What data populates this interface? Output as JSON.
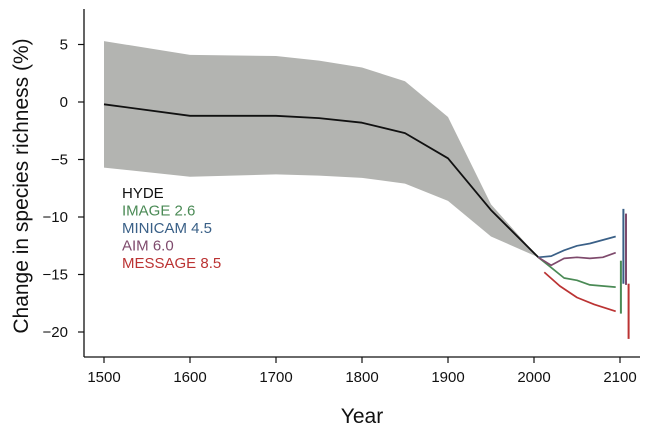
{
  "chart_data": {
    "type": "line",
    "xlabel": "Year",
    "ylabel": "Change in species richness (%)",
    "xlim": [
      1480,
      2125
    ],
    "ylim": [
      -22,
      8.5
    ],
    "x_ticks": [
      1500,
      1600,
      1700,
      1800,
      1900,
      2000,
      2100
    ],
    "y_ticks": [
      5,
      0,
      -5,
      -10,
      -15,
      -20
    ],
    "y_tick_labels": [
      "5",
      "0",
      "−5",
      "−10",
      "−15",
      "−20"
    ],
    "band": {
      "color": "#b3b4b1",
      "points": [
        {
          "x": 1500,
          "lower": -5.7,
          "upper": 5.3
        },
        {
          "x": 1600,
          "lower": -6.5,
          "upper": 4.1
        },
        {
          "x": 1700,
          "lower": -6.3,
          "upper": 4.0
        },
        {
          "x": 1750,
          "lower": -6.4,
          "upper": 3.6
        },
        {
          "x": 1800,
          "lower": -6.6,
          "upper": 3.0
        },
        {
          "x": 1850,
          "lower": -7.1,
          "upper": 1.8
        },
        {
          "x": 1900,
          "lower": -8.6,
          "upper": -1.3
        },
        {
          "x": 1950,
          "lower": -11.7,
          "upper": -8.9
        },
        {
          "x": 2005,
          "lower": -13.5,
          "upper": -13.5
        }
      ]
    },
    "series": [
      {
        "name": "HYDE",
        "color": "#111111",
        "x": [
          1500,
          1600,
          1700,
          1750,
          1800,
          1850,
          1900,
          1950,
          2005
        ],
        "y": [
          -0.2,
          -1.2,
          -1.2,
          -1.4,
          -1.8,
          -2.7,
          -4.9,
          -9.4,
          -13.5
        ]
      },
      {
        "name": "IMAGE 2.6",
        "color": "#4a8a55",
        "x": [
          2005,
          2020,
          2035,
          2050,
          2065,
          2080,
          2095
        ],
        "y": [
          -13.5,
          -14.4,
          -15.3,
          -15.5,
          -15.9,
          -16.0,
          -16.1
        ]
      },
      {
        "name": "MINICAM 4.5",
        "color": "#3a6087",
        "x": [
          2005,
          2020,
          2035,
          2050,
          2065,
          2080,
          2095
        ],
        "y": [
          -13.5,
          -13.4,
          -12.9,
          -12.5,
          -12.3,
          -12.0,
          -11.7
        ]
      },
      {
        "name": "AIM 6.0",
        "color": "#7e4a6c",
        "x": [
          2005,
          2020,
          2035,
          2050,
          2065,
          2080,
          2095
        ],
        "y": [
          -13.5,
          -14.2,
          -13.6,
          -13.5,
          -13.6,
          -13.5,
          -13.1
        ]
      },
      {
        "name": "MESSAGE 8.5",
        "color": "#bb3333",
        "x": [
          2012,
          2030,
          2050,
          2070,
          2095
        ],
        "y": [
          -14.8,
          -16.0,
          -17.0,
          -17.6,
          -18.2
        ]
      }
    ],
    "range_bars": [
      {
        "series": "IMAGE 2.6",
        "x": 2101,
        "lower": -18.4,
        "upper": -13.8
      },
      {
        "series": "MINICAM 4.5",
        "x": 2104,
        "lower": -15.8,
        "upper": -9.3
      },
      {
        "series": "AIM 6.0",
        "x": 2107,
        "lower": -15.9,
        "upper": -9.7
      },
      {
        "series": "MESSAGE 8.5",
        "x": 2110,
        "lower": -20.6,
        "upper": -15.8
      }
    ],
    "legend_placement": "center-left",
    "grid": false
  }
}
